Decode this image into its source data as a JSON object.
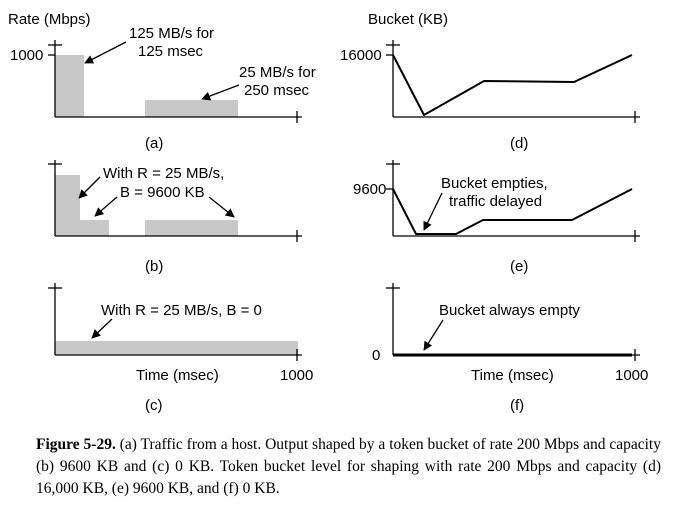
{
  "left": {
    "y_label": "Rate (Mbps)",
    "y_tick": "1000",
    "panel_a": {
      "label": "(a)",
      "ann1_line1": "125 MB/s for",
      "ann1_line2": "125 msec",
      "ann2_line1": "25 MB/s for",
      "ann2_line2": "250 msec"
    },
    "panel_b": {
      "label": "(b)",
      "ann_line1": "With R = 25 MB/s,",
      "ann_line2": "B = 9600 KB"
    },
    "panel_c": {
      "label": "(c)",
      "ann": "With R = 25 MB/s, B = 0",
      "x_label": "Time (msec)",
      "x_tick": "1000"
    }
  },
  "right": {
    "y_label": "Bucket (KB)",
    "panel_d": {
      "label": "(d)",
      "y_tick": "16000"
    },
    "panel_e": {
      "label": "(e)",
      "y_tick": "9600",
      "ann_line1": "Bucket empties,",
      "ann_line2": "traffic delayed"
    },
    "panel_f": {
      "label": "(f)",
      "y_tick": "0",
      "ann": "Bucket always empty",
      "x_label": "Time (msec)",
      "x_tick": "1000"
    }
  },
  "caption": {
    "bold": "Figure 5-29.",
    "text": "(a) Traffic from a host. Output shaped by a token bucket of rate 200 Mbps and capacity (b) 9600 KB and (c) 0 KB. Token bucket level for shaping with rate 200 Mbps and capacity (d) 16,000 KB, (e) 9600 KB, and (f) 0 KB."
  },
  "colors": {
    "fill": "#c8c8c8",
    "line": "#000000"
  }
}
